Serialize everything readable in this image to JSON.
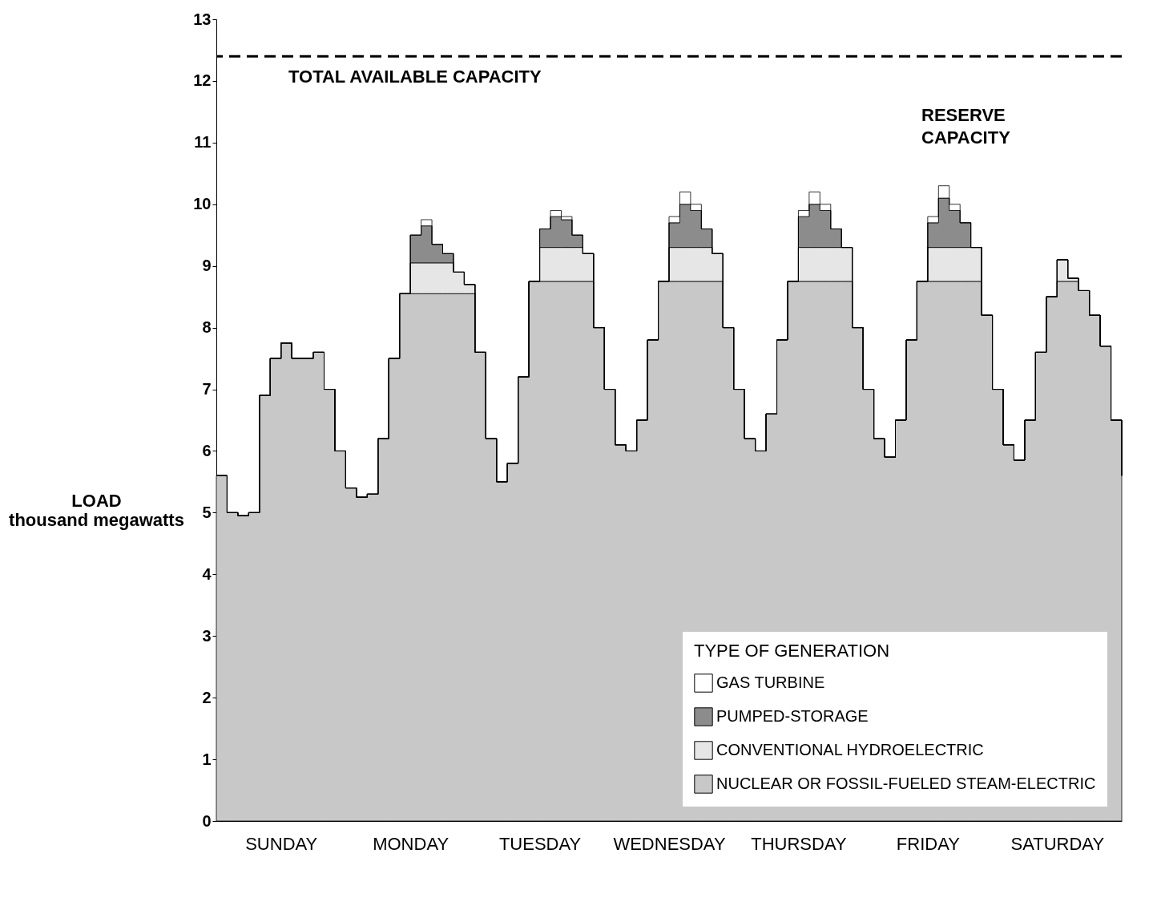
{
  "chart_data": {
    "type": "area",
    "stacked": true,
    "ylabel": "LOAD\nthousand megawatts",
    "legend_title": "TYPE OF GENERATION",
    "legend": "bottom right",
    "categories": [
      null,
      null,
      null,
      null,
      null,
      null,
      "SUNDAY",
      null,
      null,
      null,
      null,
      null,
      null,
      null,
      null,
      null,
      null,
      null,
      "MONDAY",
      null,
      null,
      null,
      null,
      null,
      null,
      null,
      null,
      null,
      null,
      null,
      "TUESDAY",
      null,
      null,
      null,
      null,
      null,
      null,
      null,
      null,
      null,
      null,
      null,
      "WEDNESDAY",
      null,
      null,
      null,
      null,
      null,
      null,
      null,
      null,
      null,
      null,
      null,
      "THURSDAY",
      null,
      null,
      null,
      null,
      null,
      null,
      null,
      null,
      null,
      null,
      null,
      "FRIDAY",
      null,
      null,
      null,
      null,
      null,
      null,
      null,
      null,
      null,
      null,
      null,
      "SATURDAY",
      null,
      null,
      null,
      null,
      null,
      null
    ],
    "ylim": [
      0,
      13
    ],
    "yticks": [
      0,
      1,
      2,
      3,
      4,
      5,
      6,
      7,
      8,
      9,
      10,
      11,
      12,
      13
    ],
    "series": [
      {
        "name": "NUCLEAR OR FOSSIL-FUELED STEAM-ELECTRIC",
        "color": "#c8c8c8",
        "values": [
          5.6,
          5.0,
          4.95,
          5.0,
          6.9,
          7.5,
          7.75,
          7.5,
          7.5,
          7.6,
          7.0,
          6.0,
          5.4,
          5.25,
          5.3,
          6.2,
          7.5,
          8.55,
          8.55,
          8.55,
          8.55,
          8.55,
          8.55,
          8.55,
          7.6,
          6.2,
          5.5,
          5.8,
          7.2,
          8.75,
          8.75,
          8.75,
          8.75,
          8.75,
          8.75,
          8.0,
          7.0,
          6.1,
          6.0,
          6.5,
          7.8,
          8.75,
          8.75,
          8.75,
          8.75,
          8.75,
          8.75,
          8.0,
          7.0,
          6.2,
          6.0,
          6.6,
          7.8,
          8.75,
          8.75,
          8.75,
          8.75,
          8.75,
          8.75,
          8.0,
          7.0,
          6.2,
          5.9,
          6.5,
          7.8,
          8.75,
          8.75,
          8.75,
          8.75,
          8.75,
          8.75,
          8.2,
          7.0,
          6.1,
          5.85,
          6.5,
          7.6,
          8.5,
          8.75,
          8.75,
          8.6,
          8.2,
          7.7,
          6.5,
          5.6
        ]
      },
      {
        "name": "CONVENTIONAL HYDROELECTRIC",
        "color": "#e6e6e6",
        "values": [
          0,
          0,
          0,
          0,
          0,
          0,
          0,
          0,
          0,
          0,
          0,
          0,
          0,
          0,
          0,
          0,
          0,
          0,
          0.5,
          0.5,
          0.5,
          0.5,
          0.35,
          0.15,
          0,
          0,
          0,
          0,
          0,
          0,
          0.55,
          0.55,
          0.55,
          0.55,
          0.45,
          0,
          0,
          0,
          0,
          0,
          0,
          0,
          0.55,
          0.55,
          0.55,
          0.55,
          0.45,
          0,
          0,
          0,
          0,
          0,
          0,
          0,
          0.55,
          0.55,
          0.55,
          0.55,
          0.55,
          0,
          0,
          0,
          0,
          0,
          0,
          0,
          0.55,
          0.55,
          0.55,
          0.55,
          0.55,
          0,
          0,
          0,
          0,
          0,
          0,
          0,
          0.35,
          0.05,
          0,
          0,
          0,
          0,
          0
        ]
      },
      {
        "name": "PUMPED-STORAGE",
        "color": "#8c8c8c",
        "values": [
          0,
          0,
          0,
          0,
          0,
          0,
          0,
          0,
          0,
          0,
          0,
          0,
          0,
          0,
          0,
          0,
          0,
          0,
          0.45,
          0.6,
          0.3,
          0.15,
          0,
          0,
          0,
          0,
          0,
          0,
          0,
          0,
          0.3,
          0.5,
          0.45,
          0.2,
          0,
          0,
          0,
          0,
          0,
          0,
          0,
          0,
          0.4,
          0.7,
          0.6,
          0.3,
          0,
          0,
          0,
          0,
          0,
          0,
          0,
          0,
          0.5,
          0.7,
          0.6,
          0.3,
          0,
          0,
          0,
          0,
          0,
          0,
          0,
          0,
          0.4,
          0.8,
          0.6,
          0.4,
          0,
          0,
          0,
          0,
          0,
          0,
          0,
          0,
          0,
          0,
          0,
          0,
          0,
          0,
          0
        ]
      },
      {
        "name": "GAS TURBINE",
        "color": "#ffffff",
        "values": [
          0,
          0,
          0,
          0,
          0,
          0,
          0,
          0,
          0,
          0,
          0,
          0,
          0,
          0,
          0,
          0,
          0,
          0,
          0,
          0.1,
          0,
          0,
          0,
          0,
          0,
          0,
          0,
          0,
          0,
          0,
          0,
          0.1,
          0.05,
          0,
          0,
          0,
          0,
          0,
          0,
          0,
          0,
          0,
          0.1,
          0.2,
          0.1,
          0,
          0,
          0,
          0,
          0,
          0,
          0,
          0,
          0,
          0.1,
          0.2,
          0.1,
          0,
          0,
          0,
          0,
          0,
          0,
          0,
          0,
          0,
          0.1,
          0.2,
          0.1,
          0,
          0,
          0,
          0,
          0,
          0,
          0,
          0,
          0,
          0,
          0,
          0,
          0,
          0,
          0,
          0
        ]
      }
    ],
    "ref_lines": [
      {
        "axis": "y",
        "value": 12.4,
        "label": "TOTAL AVAILABLE CAPACITY",
        "line_style": "dashed"
      }
    ],
    "annotations": [
      "RESERVE CAPACITY"
    ]
  }
}
